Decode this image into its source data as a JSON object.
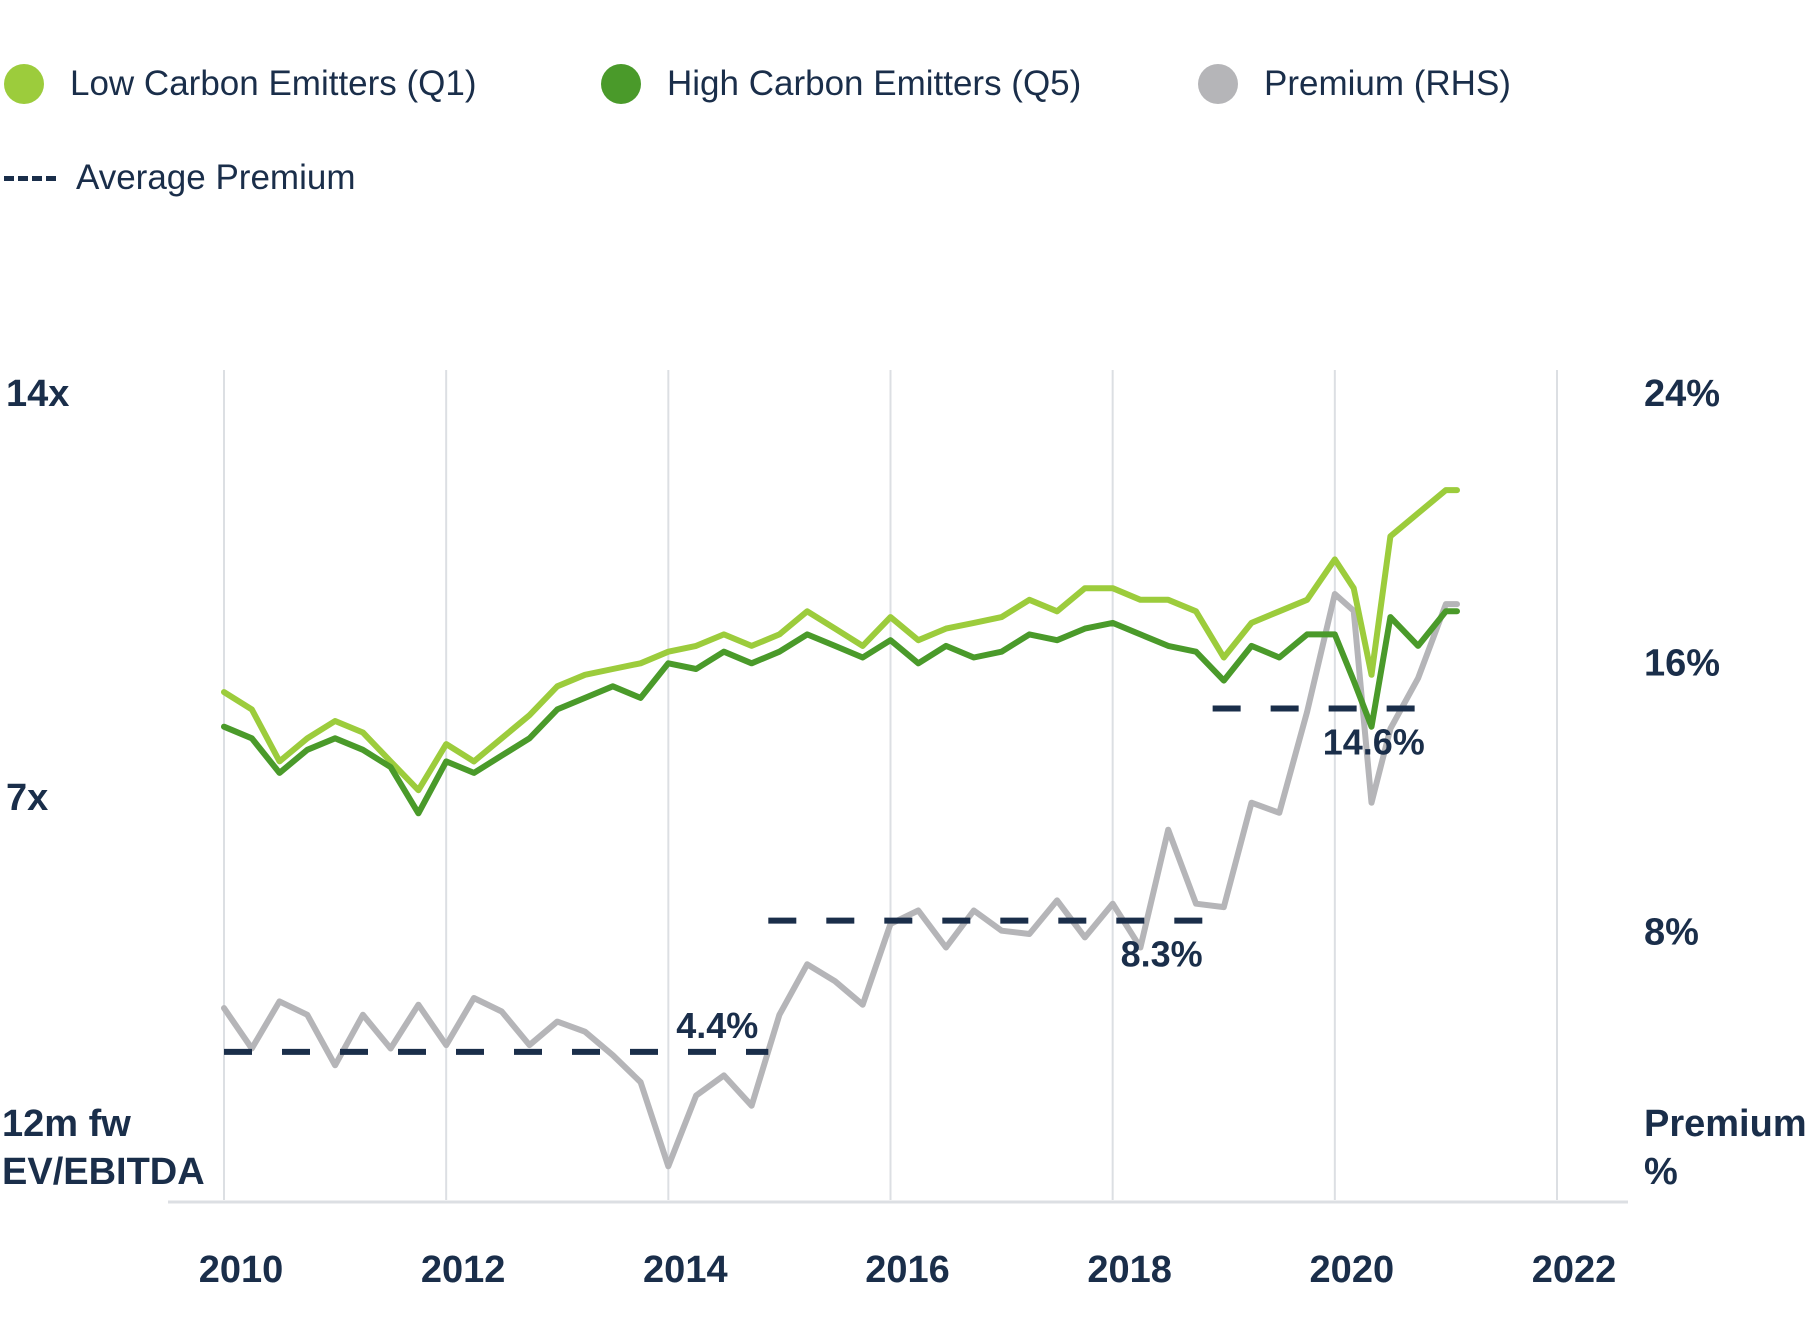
{
  "legend": {
    "items": [
      {
        "label": "Low Carbon Emitters (Q1)",
        "color": "#9ccc3c",
        "icon": "circle"
      },
      {
        "label": "High Carbon Emitters (Q5)",
        "color": "#4a9a2a",
        "icon": "circle"
      },
      {
        "label": "Premium (RHS)",
        "color": "#b5b5b8",
        "icon": "circle"
      }
    ],
    "average": {
      "label": "Average Premium",
      "color": "#1a2e4a",
      "icon": "dashed-line"
    }
  },
  "chart_data": {
    "type": "line",
    "title": "",
    "xlabel": "",
    "ylabel": "12m fw EV/EBITDA",
    "y2label": "Premium %",
    "xlim": [
      2010,
      2022
    ],
    "x_ticks": [
      "2010",
      "2012",
      "2014",
      "2016",
      "2018",
      "2020",
      "2022"
    ],
    "ylim": [
      0,
      14
    ],
    "y_ticks": [
      "7x",
      "14x"
    ],
    "y2lim": [
      0,
      24
    ],
    "y2_ticks": [
      "8%",
      "16%",
      "24%"
    ],
    "grid": "vertical",
    "legend_position": "top",
    "series": [
      {
        "name": "Low Carbon Emitters (Q1)",
        "axis": "left",
        "color": "#9ccc3c",
        "x": [
          2010.0,
          2010.25,
          2010.5,
          2010.75,
          2011.0,
          2011.25,
          2011.5,
          2011.75,
          2012.0,
          2012.25,
          2012.5,
          2012.75,
          2013.0,
          2013.25,
          2013.5,
          2013.75,
          2014.0,
          2014.25,
          2014.5,
          2014.75,
          2015.0,
          2015.25,
          2015.5,
          2015.75,
          2016.0,
          2016.25,
          2016.5,
          2016.75,
          2017.0,
          2017.25,
          2017.5,
          2017.75,
          2018.0,
          2018.25,
          2018.5,
          2018.75,
          2019.0,
          2019.25,
          2019.5,
          2019.75,
          2020.0,
          2020.17,
          2020.33,
          2020.5,
          2020.75,
          2021.0,
          2021.1
        ],
        "values": [
          8.8,
          8.5,
          7.6,
          8.0,
          8.3,
          8.1,
          7.6,
          7.1,
          7.9,
          7.6,
          8.0,
          8.4,
          8.9,
          9.1,
          9.2,
          9.3,
          9.5,
          9.6,
          9.8,
          9.6,
          9.8,
          10.2,
          9.9,
          9.6,
          10.1,
          9.7,
          9.9,
          10.0,
          10.1,
          10.4,
          10.2,
          10.6,
          10.6,
          10.4,
          10.4,
          10.2,
          9.4,
          10.0,
          10.2,
          10.4,
          11.1,
          10.6,
          9.1,
          11.5,
          11.9,
          12.3,
          12.3
        ]
      },
      {
        "name": "High Carbon Emitters (Q5)",
        "axis": "left",
        "color": "#4a9a2a",
        "x": [
          2010.0,
          2010.25,
          2010.5,
          2010.75,
          2011.0,
          2011.25,
          2011.5,
          2011.75,
          2012.0,
          2012.25,
          2012.5,
          2012.75,
          2013.0,
          2013.25,
          2013.5,
          2013.75,
          2014.0,
          2014.25,
          2014.5,
          2014.75,
          2015.0,
          2015.25,
          2015.5,
          2015.75,
          2016.0,
          2016.25,
          2016.5,
          2016.75,
          2017.0,
          2017.25,
          2017.5,
          2017.75,
          2018.0,
          2018.25,
          2018.5,
          2018.75,
          2019.0,
          2019.25,
          2019.5,
          2019.75,
          2020.0,
          2020.17,
          2020.33,
          2020.5,
          2020.75,
          2021.0,
          2021.1
        ],
        "values": [
          8.2,
          8.0,
          7.4,
          7.8,
          8.0,
          7.8,
          7.5,
          6.7,
          7.6,
          7.4,
          7.7,
          8.0,
          8.5,
          8.7,
          8.9,
          8.7,
          9.3,
          9.2,
          9.5,
          9.3,
          9.5,
          9.8,
          9.6,
          9.4,
          9.7,
          9.3,
          9.6,
          9.4,
          9.5,
          9.8,
          9.7,
          9.9,
          10.0,
          9.8,
          9.6,
          9.5,
          9.0,
          9.6,
          9.4,
          9.8,
          9.8,
          9.0,
          8.2,
          10.1,
          9.6,
          10.2,
          10.2
        ]
      },
      {
        "name": "Premium (RHS)",
        "axis": "right",
        "color": "#b5b5b8",
        "x": [
          2010.0,
          2010.25,
          2010.5,
          2010.75,
          2011.0,
          2011.25,
          2011.5,
          2011.75,
          2012.0,
          2012.25,
          2012.5,
          2012.75,
          2013.0,
          2013.25,
          2013.5,
          2013.75,
          2014.0,
          2014.25,
          2014.5,
          2014.75,
          2015.0,
          2015.25,
          2015.5,
          2015.75,
          2016.0,
          2016.25,
          2016.5,
          2016.75,
          2017.0,
          2017.25,
          2017.5,
          2017.75,
          2018.0,
          2018.25,
          2018.5,
          2018.75,
          2019.0,
          2019.25,
          2019.5,
          2019.75,
          2020.0,
          2020.17,
          2020.33,
          2020.5,
          2020.75,
          2021.0,
          2021.1
        ],
        "values": [
          5.7,
          4.5,
          5.9,
          5.5,
          4.0,
          5.5,
          4.5,
          5.8,
          4.6,
          6.0,
          5.6,
          4.6,
          5.3,
          5.0,
          4.3,
          3.5,
          1.0,
          3.1,
          3.7,
          2.8,
          5.5,
          7.0,
          6.5,
          5.8,
          8.2,
          8.6,
          7.5,
          8.6,
          8.0,
          7.9,
          8.9,
          7.8,
          8.8,
          7.5,
          11.0,
          8.8,
          8.7,
          11.8,
          11.5,
          14.5,
          18.0,
          17.5,
          11.8,
          14.0,
          15.5,
          17.7,
          17.7
        ]
      }
    ],
    "average_premium": [
      {
        "from": 2010.0,
        "to": 2014.9,
        "value": 4.4,
        "label": "4.4%"
      },
      {
        "from": 2014.9,
        "to": 2018.9,
        "value": 8.3,
        "label": "8.3%"
      },
      {
        "from": 2018.9,
        "to": 2020.9,
        "value": 14.6,
        "label": "14.6%"
      }
    ]
  }
}
